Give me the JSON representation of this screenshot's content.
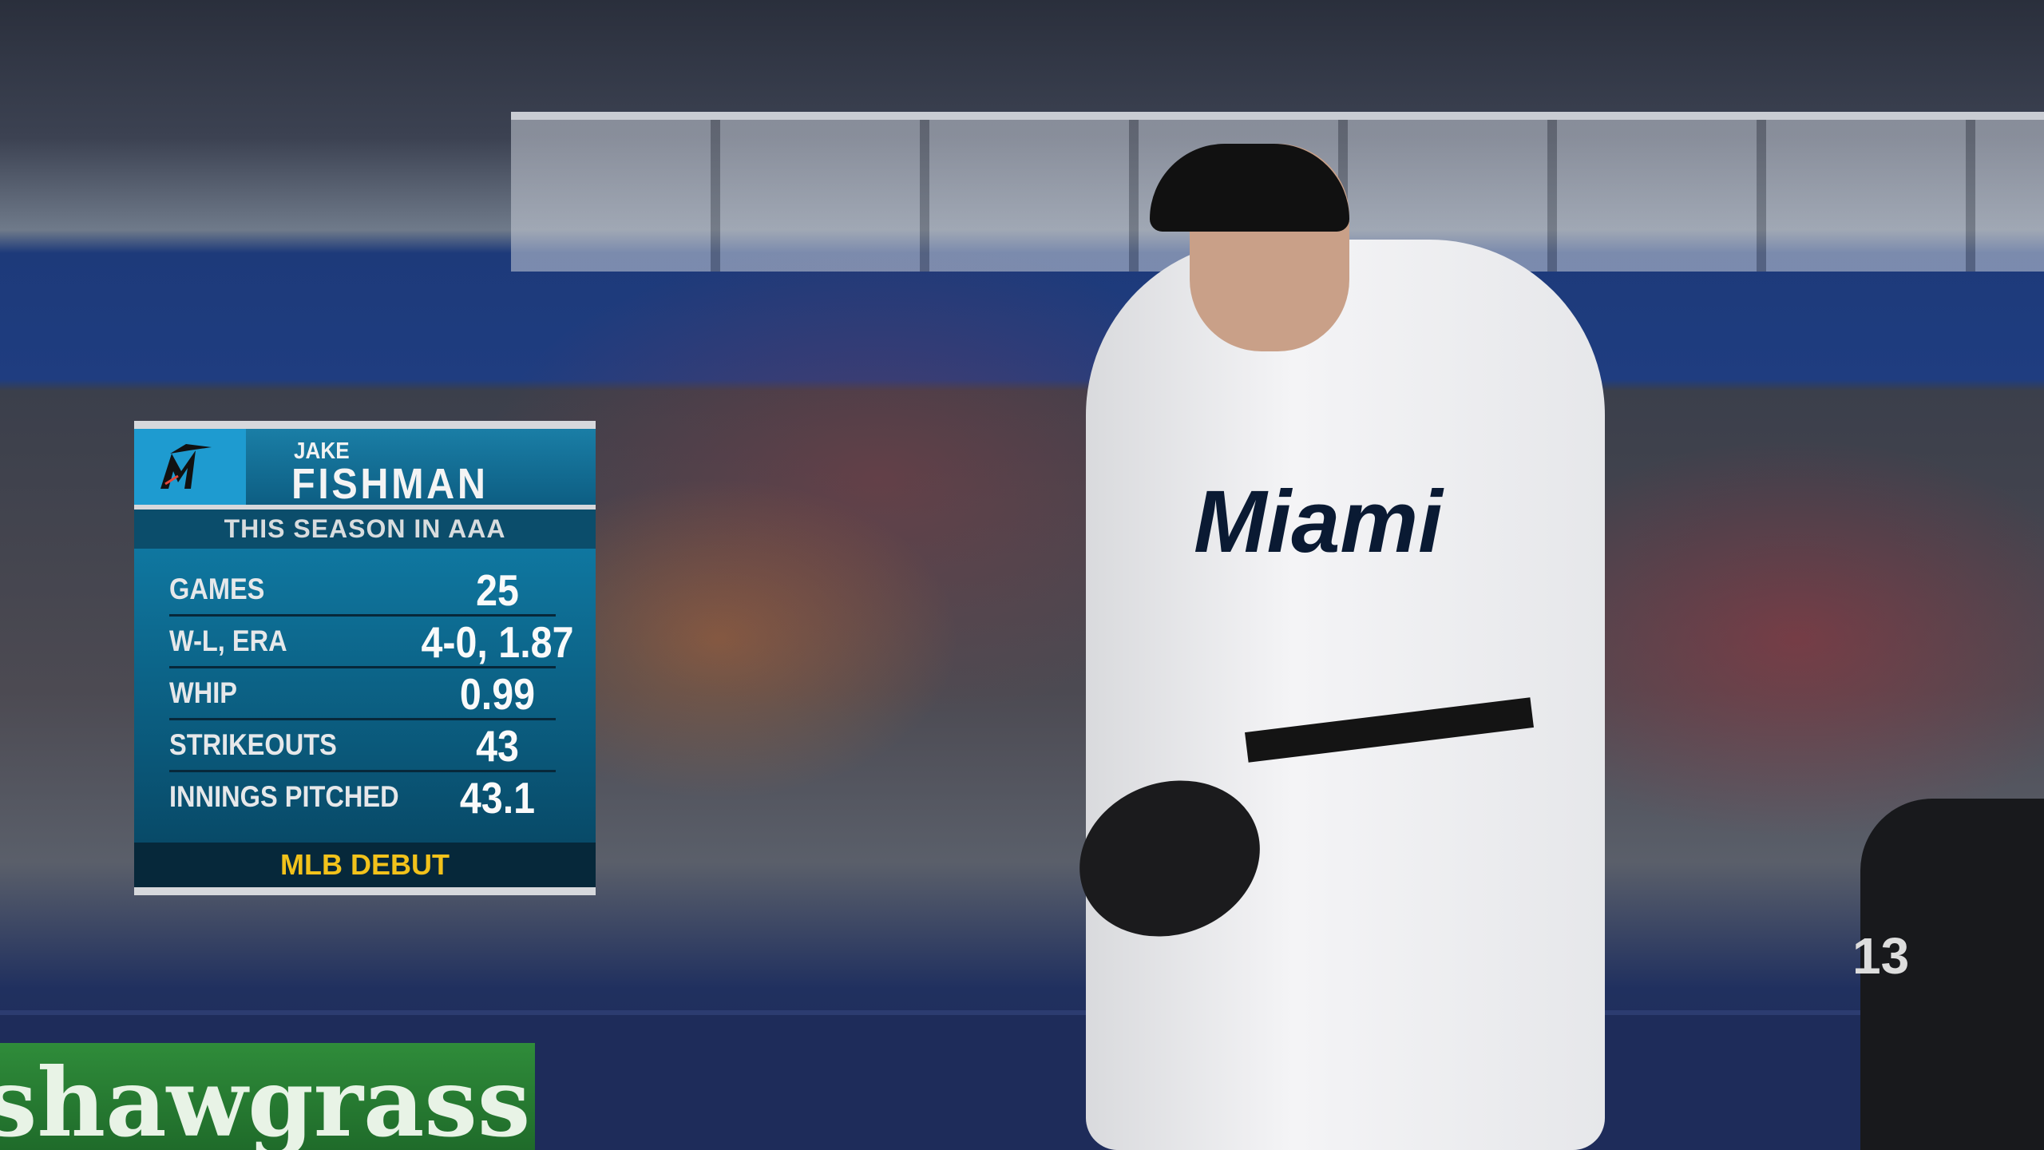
{
  "scene": {
    "ad_text": "shawgrass",
    "jersey_text": "Miami",
    "umpire_number": "13"
  },
  "graphic": {
    "team_logo": "marlins-logo",
    "first_name": "JAKE",
    "last_name": "FISHMAN",
    "subtitle": "THIS SEASON IN AAA",
    "stats": [
      {
        "label": "GAMES",
        "value": "25"
      },
      {
        "label": "W-L, ERA",
        "value": "4-0, 1.87"
      },
      {
        "label": "WHIP",
        "value": "0.99"
      },
      {
        "label": "STRIKEOUTS",
        "value": "43"
      },
      {
        "label": "INNINGS PITCHED",
        "value": "43.1"
      }
    ],
    "footer": "MLB DEBUT",
    "colors": {
      "header": "#1a7ea6",
      "footer_text": "#f2c21b",
      "logo_bg": "#1e9bd0"
    }
  }
}
